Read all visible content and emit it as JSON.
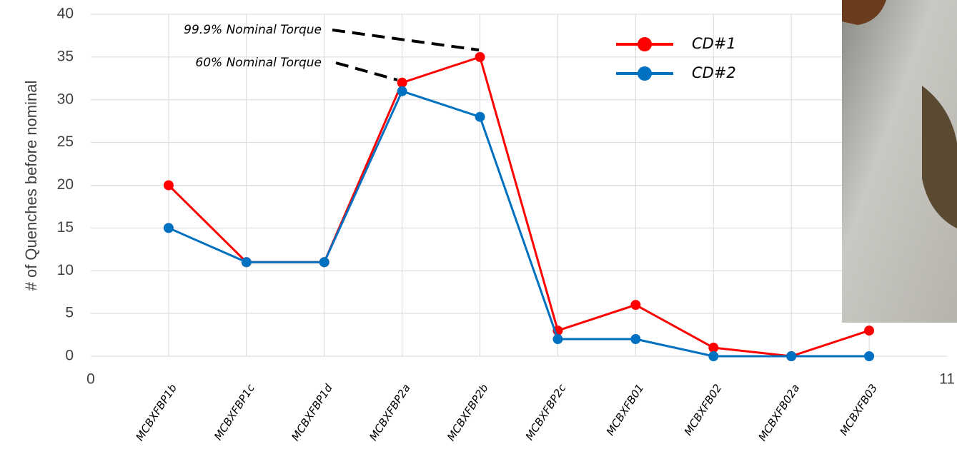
{
  "chart_data": {
    "type": "line",
    "y_label": "# of Quenches before nominal",
    "x": [
      1,
      2,
      3,
      4,
      5,
      6,
      7,
      8,
      9,
      10
    ],
    "xlim": [
      0,
      11
    ],
    "xticks": [
      0,
      {
        "value": 1,
        "label": "MCBXFBP1b"
      },
      {
        "value": 2,
        "label": "MCBXFBP1c"
      },
      {
        "value": 3,
        "label": "MCBXFBP1d"
      },
      {
        "value": 4,
        "label": "MCBXFBP2a"
      },
      {
        "value": 5,
        "label": "MCBXFBP2b"
      },
      {
        "value": 6,
        "label": "MCBXFBP2c"
      },
      {
        "value": 7,
        "label": "MCBXFB01"
      },
      {
        "value": 8,
        "label": "MCBXFB02"
      },
      {
        "value": 9,
        "label": "MCBXFB02a"
      },
      {
        "value": 10,
        "label": "MCBXFB03"
      },
      11
    ],
    "ylim": [
      0,
      40
    ],
    "yticks": [
      0,
      5,
      10,
      15,
      20,
      25,
      30,
      35,
      40
    ],
    "grid": true,
    "series": [
      {
        "name": "CD#1",
        "color": "#ff0000",
        "values": [
          20,
          11,
          11,
          32,
          35,
          3,
          6,
          1,
          0,
          3
        ]
      },
      {
        "name": "CD#2",
        "color": "#0070c0",
        "values": [
          15,
          11,
          11,
          31,
          28,
          2,
          2,
          0,
          0,
          0
        ]
      }
    ],
    "annotations": [
      "99.9% Nominal Torque",
      "60% Nominal Torque"
    ]
  }
}
